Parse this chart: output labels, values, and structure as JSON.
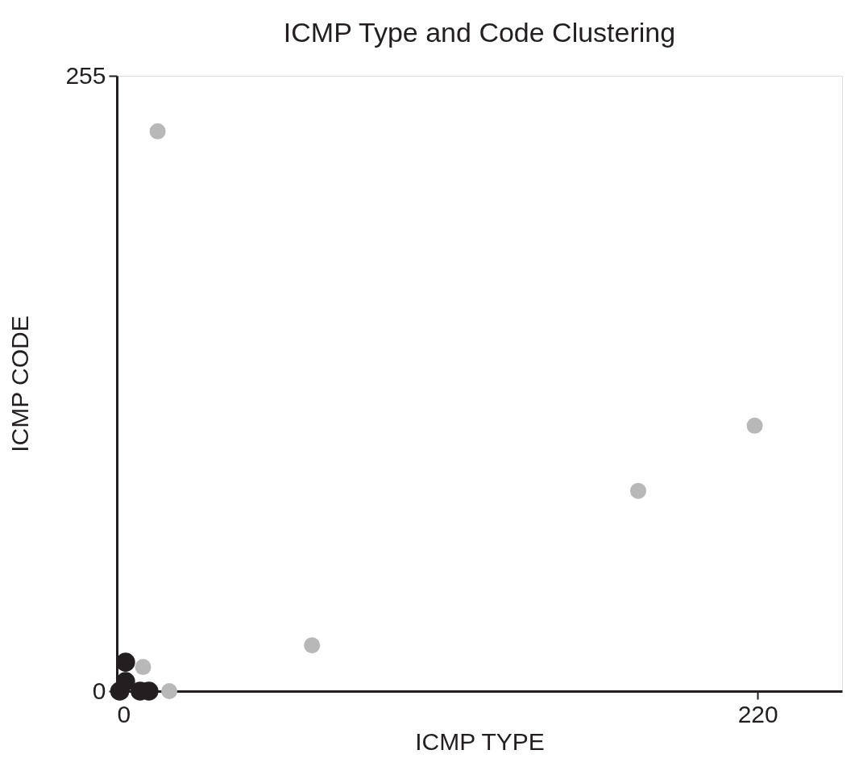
{
  "chart_data": {
    "type": "scatter",
    "title": "ICMP Type and Code Clustering",
    "xlabel": "ICMP TYPE",
    "ylabel": "ICMP CODE",
    "xlim": [
      0,
      249
    ],
    "ylim": [
      0,
      255
    ],
    "xticks": [
      0,
      220
    ],
    "yticks": [
      0,
      255
    ],
    "grid": false,
    "legend": false,
    "marker": "circle",
    "series": [
      {
        "color": "#b8b8b8",
        "x": [
          14,
          219,
          179,
          67,
          9,
          18
        ],
        "values": [
          232,
          110,
          83,
          19,
          10,
          0
        ]
      },
      {
        "color": "#231f20",
        "x": [
          3,
          3,
          1,
          8,
          11
        ],
        "values": [
          12,
          4,
          0,
          0,
          0
        ]
      }
    ]
  }
}
